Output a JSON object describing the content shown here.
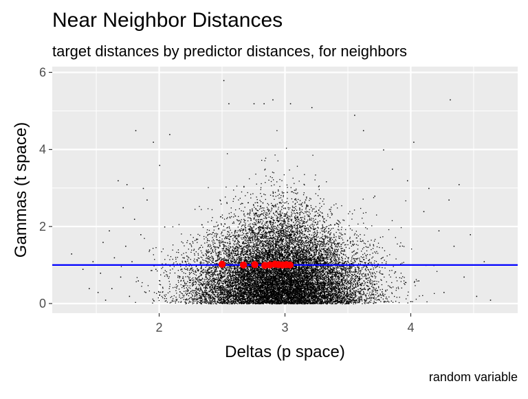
{
  "chart_data": {
    "type": "scatter",
    "title": "Near Neighbor Distances",
    "subtitle": "target distances by predictor distances, for neighbors",
    "xlabel": "Deltas (p space)",
    "ylabel": "Gammas (t space)",
    "caption": "random variable",
    "xlim": [
      1.15,
      4.85
    ],
    "ylim": [
      -0.25,
      6.15
    ],
    "x_ticks": [
      2,
      3,
      4
    ],
    "y_ticks": [
      0,
      2,
      4,
      6
    ],
    "x_minor_ticks": [
      1.5,
      2.5,
      3.5,
      4.5
    ],
    "y_minor_ticks": [
      1,
      3,
      5
    ],
    "grid": true,
    "panel_background": "#ebebeb",
    "grid_color": "#ffffff",
    "point_color": "#000000",
    "highlight_color": "#ff0000",
    "hline_color": "#0000ff",
    "hline_y": 1.0,
    "series": [
      {
        "kind": "dense_cloud",
        "x": [
          1.3,
          1.39,
          1.44,
          1.47,
          1.51,
          1.53,
          1.55,
          1.57,
          1.6,
          1.62,
          1.64,
          1.67,
          1.69,
          1.71,
          1.73,
          1.74,
          1.76,
          1.78,
          1.8,
          1.81,
          1.83,
          1.85,
          1.87,
          1.89,
          1.9,
          1.92,
          1.95,
          1.97,
          2.0,
          2.04,
          2.08,
          3.55,
          3.62,
          3.71,
          3.78,
          3.85,
          3.91,
          3.97,
          4.02,
          4.06,
          4.1,
          4.14,
          4.18,
          4.22,
          4.26,
          4.3,
          4.34,
          4.38,
          4.42,
          4.47,
          4.52,
          4.58,
          4.63,
          2.51,
          2.55,
          2.75,
          2.83,
          2.9,
          3.04,
          3.21,
          4.31
        ],
        "y": [
          1.3,
          0.9,
          0.4,
          1.1,
          0.3,
          0.8,
          1.6,
          0.1,
          1.9,
          0.4,
          1.2,
          3.2,
          0.7,
          2.5,
          1.5,
          3.1,
          0.2,
          1.1,
          2.2,
          4.5,
          0.6,
          1.8,
          3.0,
          0.3,
          2.7,
          1.4,
          4.2,
          0.9,
          3.6,
          2.0,
          4.4,
          4.9,
          4.5,
          2.8,
          4.0,
          3.5,
          1.5,
          3.2,
          4.2,
          0.6,
          2.4,
          3.0,
          1.0,
          1.9,
          0.3,
          2.7,
          1.5,
          3.1,
          0.7,
          1.8,
          0.2,
          1.1,
          0.1,
          5.8,
          5.2,
          5.2,
          5.2,
          5.3,
          5.2,
          5.1,
          5.3
        ]
      },
      {
        "kind": "highlight",
        "x": [
          2.5,
          2.67,
          2.76,
          2.84,
          2.88,
          2.92,
          2.95,
          2.98,
          3.01,
          3.04
        ],
        "y": [
          1.02,
          1.0,
          1.01,
          0.99,
          1.0,
          1.02,
          1.01,
          1.0,
          1.01,
          1.0
        ]
      }
    ]
  }
}
